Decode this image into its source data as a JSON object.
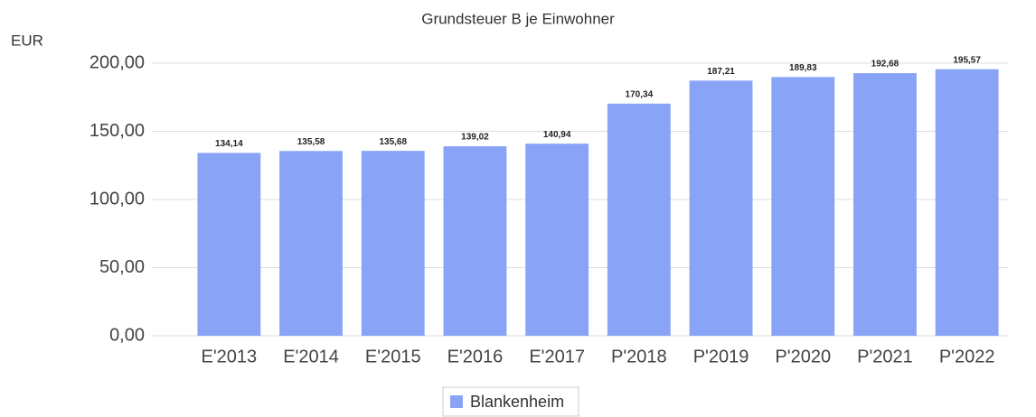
{
  "chart_data": {
    "type": "bar",
    "title": "Grundsteuer B je Einwohner",
    "y_label": "EUR",
    "categories": [
      "E'2013",
      "E'2014",
      "E'2015",
      "E'2016",
      "E'2017",
      "P'2018",
      "P'2019",
      "P'2020",
      "P'2021",
      "P'2022"
    ],
    "series": [
      {
        "name": "Blankenheim",
        "color": "#89a3f7",
        "values": [
          134.14,
          135.58,
          135.68,
          139.02,
          140.94,
          170.34,
          187.21,
          189.83,
          192.68,
          195.57
        ],
        "value_labels": [
          "134,14",
          "135,58",
          "135,68",
          "139,02",
          "140,94",
          "170,34",
          "187,21",
          "189,83",
          "192,68",
          "195,57"
        ]
      }
    ],
    "ylim": [
      0,
      200
    ],
    "yticks": [
      {
        "value": 0,
        "label": "0,00"
      },
      {
        "value": 50,
        "label": "50,00"
      },
      {
        "value": 100,
        "label": "100,00"
      },
      {
        "value": 150,
        "label": "150,00"
      },
      {
        "value": 200,
        "label": "200,00"
      }
    ],
    "grid": true,
    "legend": "bottom"
  }
}
